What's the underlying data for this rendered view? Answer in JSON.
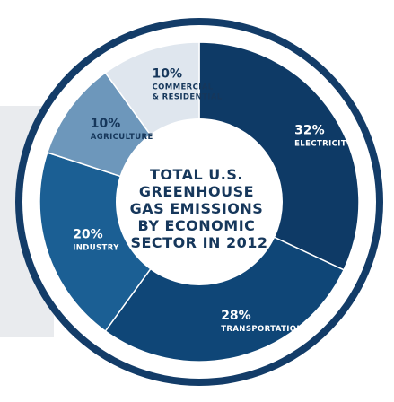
{
  "chart_data": {
    "type": "pie",
    "title_lines": [
      "TOTAL U.S.",
      "GREENHOUSE",
      "GAS EMISSIONS",
      "BY ECONOMIC",
      "SECTOR IN 2012"
    ],
    "slices": [
      {
        "label": "ELECTRICITY",
        "label_lines": [
          "ELECTRICITY"
        ],
        "pct_text": "32%",
        "value": 32,
        "color": "#0e3a66",
        "text_color": "#ffffff"
      },
      {
        "label": "TRANSPORTATION",
        "label_lines": [
          "TRANSPORTATION"
        ],
        "pct_text": "28%",
        "value": 28,
        "color": "#0f4677",
        "text_color": "#ffffff"
      },
      {
        "label": "INDUSTRY",
        "label_lines": [
          "INDUSTRY"
        ],
        "pct_text": "20%",
        "value": 20,
        "color": "#1b5f94",
        "text_color": "#ffffff"
      },
      {
        "label": "AGRICULTURE",
        "label_lines": [
          "AGRICULTURE"
        ],
        "pct_text": "10%",
        "value": 10,
        "color": "#6d97bb",
        "text_color": "#16375b"
      },
      {
        "label": "COMMERCIAL & RESIDENTIAL",
        "label_lines": [
          "COMMERCIAL",
          "& RESIDENTIAL"
        ],
        "pct_text": "10%",
        "value": 10,
        "color": "#dfe6ee",
        "text_color": "#16375b"
      }
    ],
    "colors": {
      "outer_ring": "#133c68",
      "ring_gap": "#ffffff",
      "center_fill": "#ffffff",
      "title_color": "#16375b",
      "backdrop": "#e9ebee"
    }
  }
}
